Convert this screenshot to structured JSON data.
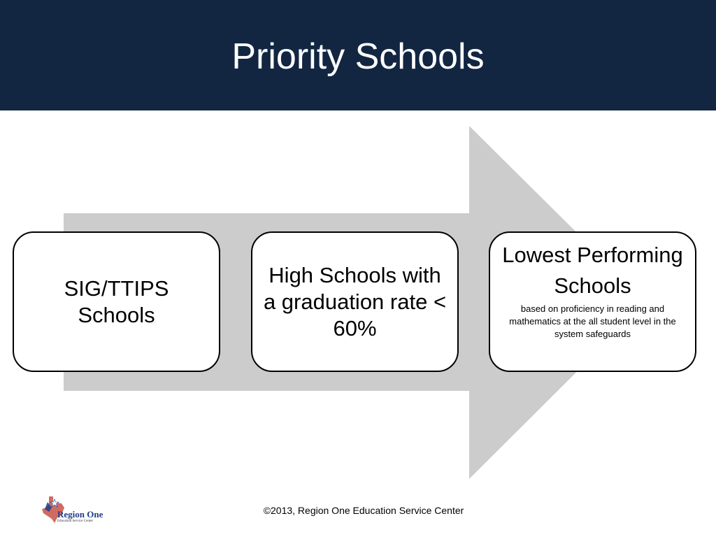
{
  "slide": {
    "title": "Priority Schools",
    "boxes": [
      {
        "main": "SIG/TTIPS Schools",
        "sub": ""
      },
      {
        "main": "High Schools with a graduation rate < 60%",
        "sub": ""
      },
      {
        "main": "Lowest Performing Schools",
        "sub": "based on proficiency in  reading and mathematics at the all student level in the system safeguards"
      }
    ],
    "footer": "©2013, Region One Education Service Center",
    "logo": {
      "name": "Region One",
      "subtitle": "Education Service Center"
    }
  },
  "colors": {
    "header_bg": "#122642",
    "arrow": "#cccccc",
    "box_border": "#000000"
  }
}
